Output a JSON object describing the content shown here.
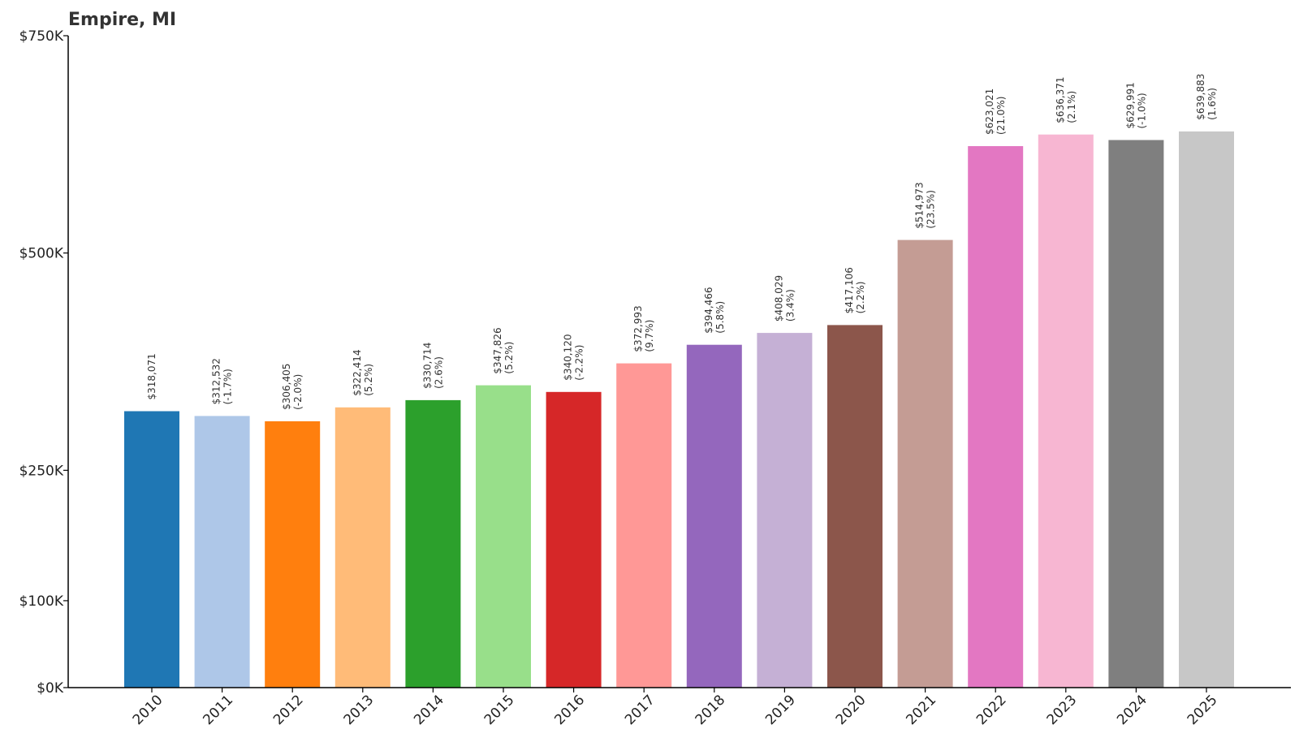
{
  "chart_data": {
    "type": "bar",
    "title": "Empire, MI",
    "xlabel": "",
    "ylabel": "",
    "ylim": [
      0,
      750000
    ],
    "yticks": [
      {
        "value": 0,
        "label": "$0K"
      },
      {
        "value": 100000,
        "label": "$100K"
      },
      {
        "value": 250000,
        "label": "$250K"
      },
      {
        "value": 500000,
        "label": "$500K"
      },
      {
        "value": 750000,
        "label": "$750K"
      }
    ],
    "categories": [
      "2010",
      "2011",
      "2012",
      "2013",
      "2014",
      "2015",
      "2016",
      "2017",
      "2018",
      "2019",
      "2020",
      "2021",
      "2022",
      "2023",
      "2024",
      "2025"
    ],
    "values": [
      318071,
      312532,
      306405,
      322414,
      330714,
      347826,
      340120,
      372993,
      394466,
      408029,
      417106,
      514973,
      623021,
      636371,
      629991,
      639883
    ],
    "value_labels": [
      "$318,071",
      "$312,532",
      "$306,405",
      "$322,414",
      "$330,714",
      "$347,826",
      "$340,120",
      "$372,993",
      "$394,466",
      "$408,029",
      "$417,106",
      "$514,973",
      "$623,021",
      "$636,371",
      "$629,991",
      "$639,883"
    ],
    "change_labels": [
      "",
      "(-1.7%)",
      "(-2.0%)",
      "(5.2%)",
      "(2.6%)",
      "(5.2%)",
      "(-2.2%)",
      "(9.7%)",
      "(5.8%)",
      "(3.4%)",
      "(2.2%)",
      "(23.5%)",
      "(21.0%)",
      "(2.1%)",
      "(-1.0%)",
      "(1.6%)"
    ],
    "colors": [
      "#1f77b4",
      "#aec7e8",
      "#ff7f0e",
      "#ffbb78",
      "#2ca02c",
      "#98df8a",
      "#d62728",
      "#ff9896",
      "#9467bd",
      "#c5b0d5",
      "#8c564b",
      "#c49c94",
      "#e377c2",
      "#f7b6d2",
      "#7f7f7f",
      "#c7c7c7"
    ],
    "grid": false,
    "legend": "none"
  }
}
